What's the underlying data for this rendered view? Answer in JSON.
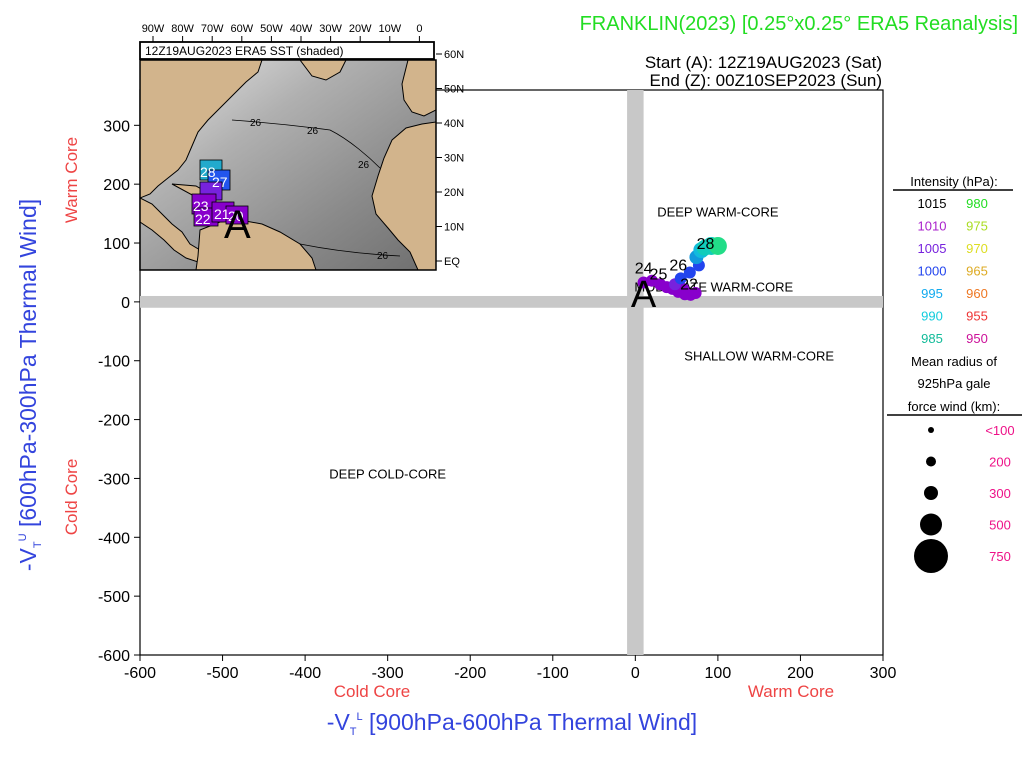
{
  "header": {
    "title": "FRANKLIN(2023) [0.25°x0.25° ERA5 Reanalysis]",
    "start": "Start (A): 12Z19AUG2023 (Sat)",
    "end": "End (Z): 00Z10SEP2023 (Sun)"
  },
  "colors": {
    "title": "#22dd22",
    "axis_label": "#3344dd",
    "core_label": "#ee4444",
    "quadrant_band": "#c8c8c8",
    "radius_label": "#ee1188"
  },
  "chart_data": {
    "type": "scatter",
    "xlabel_main": "-V",
    "xlabel_sub": "T",
    "xlabel_sup": "L",
    "xlabel_rest": " [900hPa-600hPa Thermal Wind]",
    "ylabel_main": "-V",
    "ylabel_sub": "T",
    "ylabel_sup": "U",
    "ylabel_rest": " [600hPa-300hPa Thermal Wind]",
    "xlim": [
      -600,
      300
    ],
    "ylim": [
      -600,
      360
    ],
    "xticks": [
      -600,
      -500,
      -400,
      -300,
      -200,
      -100,
      0,
      100,
      200,
      300
    ],
    "yticks": [
      -600,
      -500,
      -400,
      -300,
      -200,
      -100,
      0,
      100,
      200,
      300
    ],
    "x_core_left": "Cold Core",
    "x_core_right": "Warm Core",
    "y_core_top": "Warm Core",
    "y_core_bottom": "Cold Core",
    "regions": [
      {
        "label": "DEEP WARM-CORE",
        "x": 100,
        "y": 145
      },
      {
        "label": "MODERATE WARM-CORE",
        "x": 95,
        "y": 18
      },
      {
        "label": "SHALLOW WARM-CORE",
        "x": 150,
        "y": -100
      },
      {
        "label": "DEEP COLD-CORE",
        "x": -300,
        "y": -300
      }
    ],
    "start_marker": {
      "label": "A",
      "x": 10,
      "y": 22
    },
    "track": [
      {
        "x": 10,
        "y": 33,
        "color": "#8800cc",
        "size": 6
      },
      {
        "x": 20,
        "y": 36,
        "color": "#8800cc",
        "size": 6
      },
      {
        "x": 30,
        "y": 30,
        "color": "#8800cc",
        "size": 6
      },
      {
        "x": 38,
        "y": 25,
        "color": "#8800cc",
        "size": 6
      },
      {
        "x": 45,
        "y": 22,
        "color": "#8800cc",
        "size": 6
      },
      {
        "x": 52,
        "y": 17,
        "color": "#8800cc",
        "size": 6
      },
      {
        "x": 60,
        "y": 13,
        "color": "#8800cc",
        "size": 6
      },
      {
        "x": 67,
        "y": 12,
        "color": "#8800cc",
        "size": 6
      },
      {
        "x": 73,
        "y": 15,
        "color": "#8800cc",
        "size": 6
      },
      {
        "x": 58,
        "y": 22,
        "color": "#8800cc",
        "size": 6
      },
      {
        "x": 48,
        "y": 30,
        "color": "#7722dd",
        "size": 6
      },
      {
        "x": 55,
        "y": 40,
        "color": "#2244ee",
        "size": 6
      },
      {
        "x": 66,
        "y": 50,
        "color": "#2244ee",
        "size": 6
      },
      {
        "x": 77,
        "y": 62,
        "color": "#2244ee",
        "size": 6
      },
      {
        "x": 74,
        "y": 76,
        "color": "#1199dd",
        "size": 7
      },
      {
        "x": 80,
        "y": 88,
        "color": "#11bbdd",
        "size": 8
      },
      {
        "x": 84,
        "y": 92,
        "color": "#11ccbb",
        "size": 8
      },
      {
        "x": 92,
        "y": 95,
        "color": "#11ccbb",
        "size": 9
      },
      {
        "x": 100,
        "y": 95,
        "color": "#22dd88",
        "size": 9
      }
    ],
    "track_labels": [
      {
        "text": "24",
        "x": 10,
        "y": 48
      },
      {
        "text": "25",
        "x": 28,
        "y": 38
      },
      {
        "text": "26",
        "x": 52,
        "y": 53
      },
      {
        "text": "22",
        "x": 65,
        "y": 21
      },
      {
        "text": "28",
        "x": 85,
        "y": 90
      }
    ],
    "legend": {
      "title": "Intensity (hPa):",
      "rows": [
        [
          {
            "text": "1015",
            "color": "#000000"
          },
          {
            "text": "980",
            "color": "#22dd22"
          }
        ],
        [
          {
            "text": "1010",
            "color": "#aa22cc"
          },
          {
            "text": "975",
            "color": "#aadd22"
          }
        ],
        [
          {
            "text": "1005",
            "color": "#7722dd"
          },
          {
            "text": "970",
            "color": "#dddd22"
          }
        ],
        [
          {
            "text": "1000",
            "color": "#2244ee"
          },
          {
            "text": "965",
            "color": "#ddaa22"
          }
        ],
        [
          {
            "text": "995",
            "color": "#11aaee"
          },
          {
            "text": "960",
            "color": "#ee7722"
          }
        ],
        [
          {
            "text": "990",
            "color": "#11ccdd"
          },
          {
            "text": "955",
            "color": "#ee3333"
          }
        ],
        [
          {
            "text": "985",
            "color": "#11bb99"
          },
          {
            "text": "950",
            "color": "#cc1199"
          }
        ]
      ],
      "radius_title_1": "Mean radius of",
      "radius_title_2": "925hPa gale",
      "radius_title_3": "force wind (km):",
      "radius_rows": [
        {
          "text": "<100",
          "r": 3
        },
        {
          "text": "200",
          "r": 5
        },
        {
          "text": "300",
          "r": 7
        },
        {
          "text": "500",
          "r": 11
        },
        {
          "text": "750",
          "r": 17
        }
      ]
    },
    "inset": {
      "title": "12Z19AUG2023 ERA5 SST (shaded)",
      "lon_ticks": [
        "90W",
        "80W",
        "70W",
        "60W",
        "50W",
        "40W",
        "30W",
        "20W",
        "10W",
        "0"
      ],
      "lat_ticks": [
        "60N",
        "50N",
        "40N",
        "30N",
        "20N",
        "10N",
        "EQ"
      ],
      "sst_labels": [
        "26",
        "26",
        "26",
        "26"
      ],
      "track_labels": [
        "28",
        "27",
        "23",
        "22",
        "21",
        "20"
      ],
      "start_marker": "A"
    }
  }
}
